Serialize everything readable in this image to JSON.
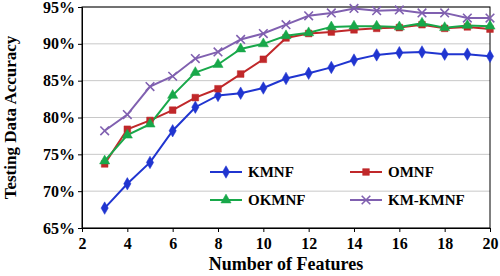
{
  "chart_data": {
    "type": "line",
    "x_label": "Number of Features",
    "y_label": "Testing Data Accuracy",
    "x": [
      3,
      4,
      5,
      6,
      7,
      8,
      9,
      10,
      11,
      12,
      13,
      14,
      15,
      16,
      17,
      18,
      19,
      20
    ],
    "series": [
      {
        "name": "KMNF",
        "color": "#2035d0",
        "marker": "diamond",
        "values": [
          67.7,
          71.0,
          73.9,
          78.2,
          81.4,
          83.0,
          83.3,
          84.0,
          85.3,
          86.0,
          86.8,
          87.8,
          88.5,
          88.8,
          88.9,
          88.6,
          88.6,
          88.3
        ]
      },
      {
        "name": "OMNF",
        "color": "#c0282a",
        "marker": "square",
        "values": [
          73.7,
          78.4,
          79.6,
          81.0,
          82.7,
          83.9,
          85.9,
          87.9,
          90.8,
          91.4,
          91.6,
          91.9,
          92.1,
          92.2,
          92.6,
          92.1,
          92.3,
          92.0
        ]
      },
      {
        "name": "OKMNF",
        "color": "#18a84a",
        "marker": "triangle",
        "values": [
          74.1,
          77.6,
          79.1,
          83.0,
          86.1,
          87.2,
          89.3,
          90.0,
          91.1,
          91.5,
          92.3,
          92.4,
          92.4,
          92.3,
          92.8,
          92.2,
          92.5,
          92.4
        ]
      },
      {
        "name": "KM-KMNF",
        "color": "#8060b0",
        "marker": "x",
        "values": [
          78.2,
          80.4,
          84.2,
          85.6,
          88.0,
          88.9,
          90.6,
          91.4,
          92.6,
          93.8,
          94.2,
          94.8,
          94.5,
          94.6,
          94.2,
          94.2,
          93.5,
          93.5
        ]
      }
    ],
    "xlim": [
      2,
      20
    ],
    "xticks": [
      2,
      4,
      6,
      8,
      10,
      12,
      14,
      16,
      18,
      20
    ],
    "ylim": [
      65,
      95
    ],
    "yticks": [
      {
        "value": 65,
        "label": "65%"
      },
      {
        "value": 70,
        "label": "70%"
      },
      {
        "value": 75,
        "label": "75%"
      },
      {
        "value": 80,
        "label": "80%"
      },
      {
        "value": 85,
        "label": "85%"
      },
      {
        "value": 90,
        "label": "90%"
      },
      {
        "value": 95,
        "label": "95%"
      }
    ],
    "grid": true,
    "legend": "lower right"
  }
}
